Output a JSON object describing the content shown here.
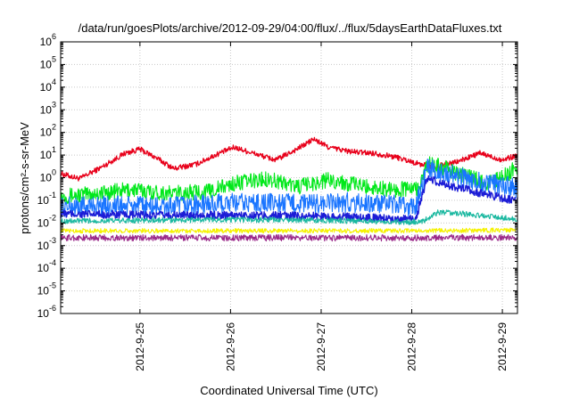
{
  "chart_data": {
    "type": "line",
    "title": "/data/run/goesPlots/archive/2012-09-29/04:00/flux/../flux/5daysEarthDataFluxes.txt",
    "xlabel": "Coordinated Universal Time (UTC)",
    "ylabel": "protons/cm²-s-sr-MeV",
    "yscale": "log",
    "ylim": [
      1e-06,
      1000000.0
    ],
    "xlim": [
      "2012-09-24T03:00",
      "2012-09-29T04:00"
    ],
    "xticks": [
      "2012-9-25",
      "2012-9-26",
      "2012-9-27",
      "2012-9-28",
      "2012-9-29"
    ],
    "yticks": [
      {
        "base": "10",
        "exp": "-6"
      },
      {
        "base": "10",
        "exp": "-5"
      },
      {
        "base": "10",
        "exp": "-4"
      },
      {
        "base": "10",
        "exp": "-3"
      },
      {
        "base": "10",
        "exp": "-2"
      },
      {
        "base": "10",
        "exp": "-1"
      },
      {
        "base": "10",
        "exp": "0"
      },
      {
        "base": "10",
        "exp": "1"
      },
      {
        "base": "10",
        "exp": "2"
      },
      {
        "base": "10",
        "exp": "3"
      },
      {
        "base": "10",
        "exp": "4"
      },
      {
        "base": "10",
        "exp": "5"
      },
      {
        "base": "10",
        "exp": "6"
      }
    ],
    "grid": true,
    "series": [
      {
        "color": "#e8001a",
        "noise": 0.12,
        "width": 1.3,
        "points": [
          [
            "2012-09-24T03:00",
            1.5
          ],
          [
            "2012-09-24T08:00",
            0.9
          ],
          [
            "2012-09-24T14:00",
            3
          ],
          [
            "2012-09-24T20:00",
            12
          ],
          [
            "2012-09-25T00:00",
            18
          ],
          [
            "2012-09-25T04:00",
            8
          ],
          [
            "2012-09-25T09:00",
            2.5
          ],
          [
            "2012-09-25T15:00",
            4
          ],
          [
            "2012-09-25T21:00",
            12
          ],
          [
            "2012-09-26T01:00",
            22
          ],
          [
            "2012-09-26T06:00",
            12
          ],
          [
            "2012-09-26T12:00",
            6
          ],
          [
            "2012-09-26T18:00",
            20
          ],
          [
            "2012-09-26T22:00",
            50
          ],
          [
            "2012-09-27T02:00",
            22
          ],
          [
            "2012-09-27T08:00",
            14
          ],
          [
            "2012-09-27T14:00",
            12
          ],
          [
            "2012-09-27T20:00",
            8
          ],
          [
            "2012-09-28T02:00",
            4
          ],
          [
            "2012-09-28T06:00",
            3
          ],
          [
            "2012-09-28T12:00",
            5
          ],
          [
            "2012-09-28T18:00",
            12
          ],
          [
            "2012-09-29T00:00",
            6
          ],
          [
            "2012-09-29T04:00",
            10
          ]
        ]
      },
      {
        "color": "#00e81a",
        "noise": 0.35,
        "width": 1.1,
        "points": [
          [
            "2012-09-24T03:00",
            0.15
          ],
          [
            "2012-09-24T12:00",
            0.2
          ],
          [
            "2012-09-24T22:00",
            0.3
          ],
          [
            "2012-09-25T08:00",
            0.2
          ],
          [
            "2012-09-25T18:00",
            0.25
          ],
          [
            "2012-09-26T02:00",
            0.6
          ],
          [
            "2012-09-26T10:00",
            0.9
          ],
          [
            "2012-09-26T18:00",
            0.4
          ],
          [
            "2012-09-27T02:00",
            0.8
          ],
          [
            "2012-09-27T12:00",
            0.4
          ],
          [
            "2012-09-27T20:00",
            0.3
          ],
          [
            "2012-09-28T02:00",
            0.35
          ],
          [
            "2012-09-28T04:00",
            4
          ],
          [
            "2012-09-28T08:00",
            3
          ],
          [
            "2012-09-28T14:00",
            1.2
          ],
          [
            "2012-09-28T20:00",
            0.6
          ],
          [
            "2012-09-29T00:00",
            1
          ],
          [
            "2012-09-29T04:00",
            3
          ]
        ]
      },
      {
        "color": "#1a75ff",
        "noise": 0.45,
        "width": 1.1,
        "points": [
          [
            "2012-09-24T03:00",
            0.05
          ],
          [
            "2012-09-24T18:00",
            0.06
          ],
          [
            "2012-09-25T06:00",
            0.05
          ],
          [
            "2012-09-25T20:00",
            0.07
          ],
          [
            "2012-09-26T08:00",
            0.08
          ],
          [
            "2012-09-26T20:00",
            0.07
          ],
          [
            "2012-09-27T08:00",
            0.08
          ],
          [
            "2012-09-27T20:00",
            0.06
          ],
          [
            "2012-09-28T01:00",
            0.05
          ],
          [
            "2012-09-28T04:00",
            2.5
          ],
          [
            "2012-09-28T08:00",
            1.8
          ],
          [
            "2012-09-28T14:00",
            0.9
          ],
          [
            "2012-09-28T22:00",
            0.5
          ],
          [
            "2012-09-29T04:00",
            0.35
          ]
        ]
      },
      {
        "color": "#1c1cd6",
        "noise": 0.18,
        "width": 1.4,
        "points": [
          [
            "2012-09-24T03:00",
            0.025
          ],
          [
            "2012-09-25T00:00",
            0.022
          ],
          [
            "2012-09-26T00:00",
            0.022
          ],
          [
            "2012-09-27T00:00",
            0.02
          ],
          [
            "2012-09-27T22:00",
            0.015
          ],
          [
            "2012-09-28T01:00",
            0.014
          ],
          [
            "2012-09-28T04:00",
            0.9
          ],
          [
            "2012-09-28T08:00",
            0.55
          ],
          [
            "2012-09-28T16:00",
            0.25
          ],
          [
            "2012-09-29T04:00",
            0.09
          ]
        ]
      },
      {
        "color": "#1ab8a0",
        "noise": 0.12,
        "width": 1.1,
        "points": [
          [
            "2012-09-24T03:00",
            0.012
          ],
          [
            "2012-09-25T00:00",
            0.013
          ],
          [
            "2012-09-26T00:00",
            0.014
          ],
          [
            "2012-09-27T00:00",
            0.013
          ],
          [
            "2012-09-28T00:00",
            0.011
          ],
          [
            "2012-09-28T03:00",
            0.012
          ],
          [
            "2012-09-28T07:00",
            0.03
          ],
          [
            "2012-09-28T14:00",
            0.025
          ],
          [
            "2012-09-29T04:00",
            0.015
          ]
        ]
      },
      {
        "color": "#f5f200",
        "noise": 0.1,
        "width": 1.1,
        "points": [
          [
            "2012-09-24T03:00",
            0.0045
          ],
          [
            "2012-09-26T00:00",
            0.0045
          ],
          [
            "2012-09-28T00:00",
            0.0045
          ],
          [
            "2012-09-29T04:00",
            0.0048
          ]
        ]
      },
      {
        "color": "#9b2a8a",
        "noise": 0.14,
        "width": 1.1,
        "points": [
          [
            "2012-09-24T03:00",
            0.0022
          ],
          [
            "2012-09-26T00:00",
            0.0022
          ],
          [
            "2012-09-28T00:00",
            0.0022
          ],
          [
            "2012-09-29T04:00",
            0.0023
          ]
        ]
      }
    ]
  }
}
